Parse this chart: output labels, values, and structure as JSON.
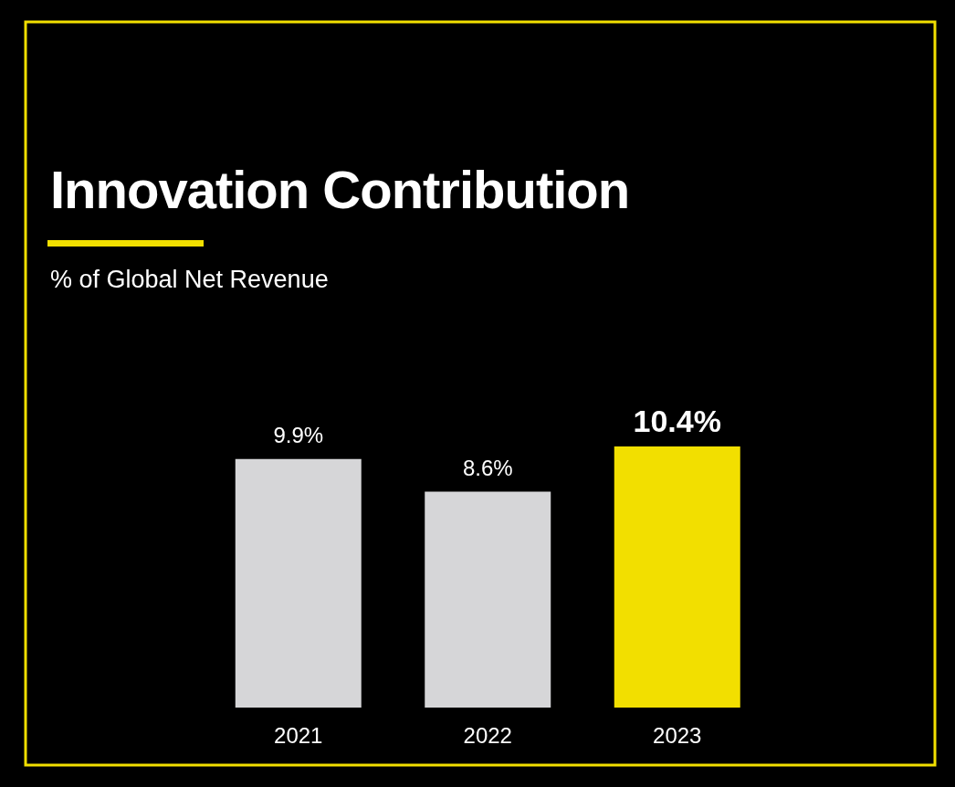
{
  "chart_data": {
    "type": "bar",
    "title": "Innovation Contribution",
    "subtitle": "% of Global Net Revenue",
    "categories": [
      "2021",
      "2022",
      "2023"
    ],
    "values": [
      9.9,
      8.6,
      10.4
    ],
    "colors": [
      "#d6d6d8",
      "#d6d6d8",
      "#f2df00"
    ],
    "value_labels": [
      "9.9%",
      "8.6%",
      "10.4%"
    ]
  }
}
